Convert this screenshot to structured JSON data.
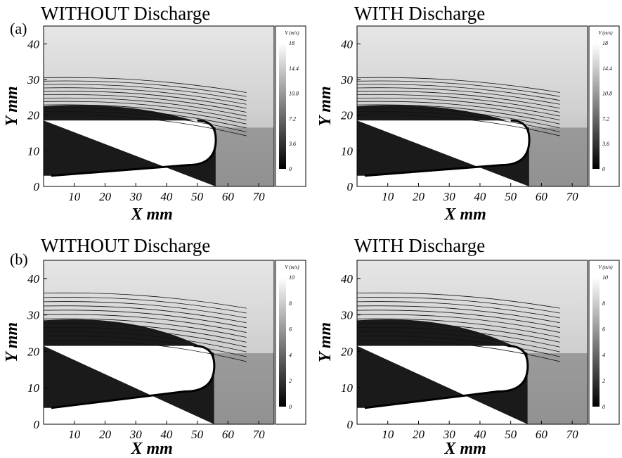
{
  "figure": {
    "rows": [
      {
        "label": "(a)",
        "panels": [
          {
            "title": "WITHOUT Discharge",
            "discharge": false
          },
          {
            "title": "WITH Discharge",
            "discharge": true
          }
        ],
        "colorbar": {
          "label": "V (m/s)",
          "ticks": [
            "0",
            "3.6",
            "7.2",
            "10.8",
            "14.4",
            "18"
          ],
          "min": 0,
          "max": 18
        }
      },
      {
        "label": "(b)",
        "panels": [
          {
            "title": "WITHOUT Discharge",
            "discharge": false
          },
          {
            "title": "WITH Discharge",
            "discharge": true
          }
        ],
        "colorbar": {
          "label": "V (m/s)",
          "ticks": [
            "0",
            "2",
            "4",
            "6",
            "8",
            "10"
          ],
          "min": 0,
          "max": 10
        }
      }
    ]
  },
  "chart_data": [
    {
      "type": "heatmap",
      "row": "(a)",
      "title": "WITHOUT Discharge",
      "xlabel": "X mm",
      "ylabel": "Y mm",
      "xlim": [
        0,
        75
      ],
      "ylim": [
        0,
        45
      ],
      "xticks": [
        "10",
        "20",
        "30",
        "40",
        "50",
        "60",
        "70"
      ],
      "yticks": [
        "0",
        "10",
        "20",
        "30",
        "40"
      ],
      "colorbar_label": "V (m/s)",
      "colorbar_range": [
        0,
        18
      ],
      "streamlines": true
    },
    {
      "type": "heatmap",
      "row": "(a)",
      "title": "WITH Discharge",
      "xlabel": "X mm",
      "ylabel": "Y mm",
      "xlim": [
        0,
        75
      ],
      "ylim": [
        0,
        45
      ],
      "xticks": [
        "10",
        "20",
        "30",
        "40",
        "50",
        "60",
        "70"
      ],
      "yticks": [
        "0",
        "10",
        "20",
        "30",
        "40"
      ],
      "colorbar_label": "V (m/s)",
      "colorbar_range": [
        0,
        18
      ],
      "streamlines": true
    },
    {
      "type": "heatmap",
      "row": "(b)",
      "title": "WITHOUT Discharge",
      "xlabel": "X mm",
      "ylabel": "Y mm",
      "xlim": [
        0,
        75
      ],
      "ylim": [
        0,
        45
      ],
      "xticks": [
        "10",
        "20",
        "30",
        "40",
        "50",
        "60",
        "70"
      ],
      "yticks": [
        "0",
        "10",
        "20",
        "30",
        "40"
      ],
      "colorbar_label": "V (m/s)",
      "colorbar_range": [
        0,
        10
      ],
      "streamlines": true
    },
    {
      "type": "heatmap",
      "row": "(b)",
      "title": "WITH Discharge",
      "xlabel": "X mm",
      "ylabel": "Y mm",
      "xlim": [
        0,
        75
      ],
      "ylim": [
        0,
        45
      ],
      "xticks": [
        "10",
        "20",
        "30",
        "40",
        "50",
        "60",
        "70"
      ],
      "yticks": [
        "0",
        "10",
        "20",
        "30",
        "40"
      ],
      "colorbar_label": "V (m/s)",
      "colorbar_range": [
        0,
        10
      ],
      "streamlines": true
    }
  ]
}
